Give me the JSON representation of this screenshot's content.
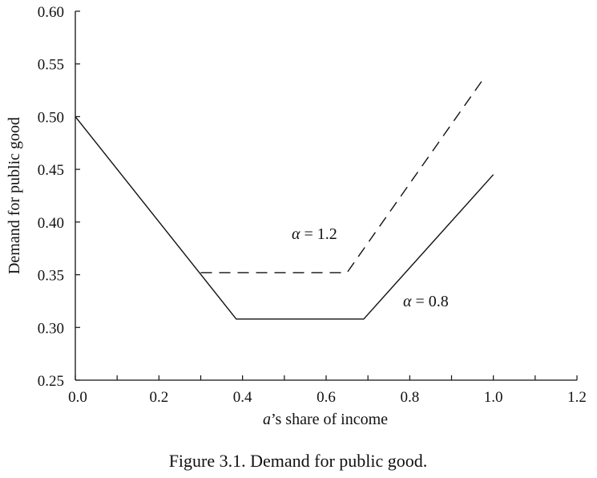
{
  "chart_data": {
    "type": "line",
    "caption": "Figure 3.1. Demand for public good.",
    "xlabel": "a’s share of income",
    "ylabel": "Demand for public good",
    "xlim": [
      0,
      1.2
    ],
    "ylim": [
      0.25,
      0.6
    ],
    "x_ticks": [
      "0.0",
      "0.2",
      "0.4",
      "0.6",
      "0.8",
      "1.0",
      "1.2"
    ],
    "y_ticks": [
      "0.60",
      "0.55",
      "0.50",
      "0.45",
      "0.40",
      "0.35",
      "0.30",
      "0.25"
    ],
    "grid": false,
    "legend": "none (series labelled inline)",
    "series": [
      {
        "name": "α = 0.8",
        "label_symbol": "α",
        "label_rest": " = 0.8",
        "style": "solid",
        "color": "#111111",
        "x": [
          0.0,
          0.385,
          0.69,
          1.0
        ],
        "y": [
          0.5,
          0.308,
          0.308,
          0.445
        ]
      },
      {
        "name": "α = 1.2",
        "label_symbol": "α",
        "label_rest": " = 1.2",
        "style": "dashed",
        "color": "#111111",
        "x": [
          0.3,
          0.65,
          0.98
        ],
        "y": [
          0.352,
          0.352,
          0.538
        ]
      }
    ]
  }
}
